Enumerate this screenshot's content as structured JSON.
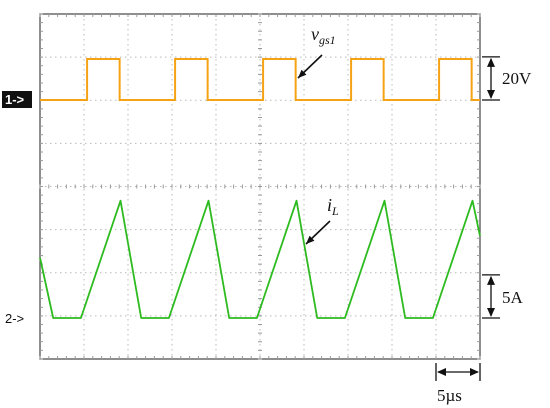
{
  "chart_data": {
    "type": "line",
    "title": "",
    "grid": true,
    "x_divisions": 10,
    "y_divisions": 8,
    "x_scale": {
      "value": 5,
      "unit": "µs",
      "label": "5µs"
    },
    "channels": [
      {
        "marker": "1->",
        "name": "v",
        "subscript": "gs1",
        "color": "#f5a214",
        "scale_label": "20V",
        "scale_per_div": 20,
        "unit": "V",
        "low_div": 0,
        "high_div": 0.95,
        "period_div": 2.0,
        "duty": 0.37,
        "first_rise_div": 1.07
      },
      {
        "marker": "2->",
        "name": "i",
        "subscript": "L",
        "color": "#2dbb1f",
        "scale_label": "5A",
        "scale_per_div": 5,
        "unit": "A",
        "x_div": [
          0.0,
          0.3,
          0.93,
          1.83,
          2.3,
          2.93,
          3.83,
          4.3,
          4.93,
          5.83,
          6.3,
          6.93,
          7.83,
          8.3,
          8.93,
          9.83,
          10.0
        ],
        "y_div": [
          1.4,
          0.0,
          0.0,
          2.72,
          0.0,
          0.0,
          2.72,
          0.0,
          0.0,
          2.72,
          0.0,
          0.0,
          2.72,
          0.0,
          0.0,
          2.72,
          1.9
        ]
      }
    ]
  }
}
